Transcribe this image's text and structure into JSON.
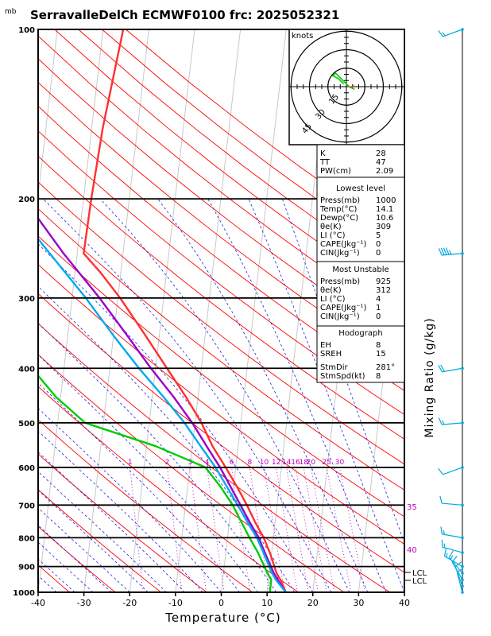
{
  "header": {
    "units_label": "mb",
    "title": "SerravalleDelCh ECMWF0100 frc: 2025052321"
  },
  "axes": {
    "xlabel": "Temperature (°C)",
    "right_label": "Mixing Ratio (g/kg)",
    "x_ticks": [
      "-40",
      "-30",
      "-20",
      "-10",
      "0",
      "10",
      "20",
      "30",
      "40"
    ],
    "p_ticks": [
      "100",
      "200",
      "300",
      "400",
      "500",
      "600",
      "700",
      "800",
      "900",
      "1000"
    ]
  },
  "hodograph": {
    "units": "knots",
    "ring_labels": [
      "15",
      "30",
      "45"
    ]
  },
  "mixing_ratio_labels": [
    "1",
    "2",
    "3",
    "4",
    "6",
    "8",
    "10",
    "12",
    "14",
    "16",
    "18",
    "20",
    "25",
    "30"
  ],
  "theta_labels": [
    "35",
    "40"
  ],
  "lcl_labels": [
    "LCL",
    "LCL"
  ],
  "indices": {
    "basic": [
      {
        "k": "K",
        "v": "28"
      },
      {
        "k": "TT",
        "v": "47"
      },
      {
        "k": "PW(cm)",
        "v": "2.09"
      }
    ],
    "lowest_title": "Lowest level",
    "lowest": [
      {
        "k": "Press(mb)",
        "v": "1000"
      },
      {
        "k": "Temp(°C)",
        "v": "14.1"
      },
      {
        "k": "Dewp(°C)",
        "v": "10.6"
      },
      {
        "k": "θe(K)",
        "v": "309"
      },
      {
        "k": "LI (°C)",
        "v": "5"
      },
      {
        "k": "CAPE(Jkg⁻¹)",
        "v": "0"
      },
      {
        "k": "CIN(Jkg⁻¹)",
        "v": "0"
      }
    ],
    "unstable_title": "Most Unstable",
    "unstable": [
      {
        "k": "Press(mb)",
        "v": "925"
      },
      {
        "k": "θe(K)",
        "v": "312"
      },
      {
        "k": "LI (°C)",
        "v": "4"
      },
      {
        "k": "CAPE(Jkg⁻¹)",
        "v": "1"
      },
      {
        "k": "CIN(Jkg⁻¹)",
        "v": "0"
      }
    ],
    "hodo_title": "Hodograph",
    "hodo": [
      {
        "k": "EH",
        "v": "8"
      },
      {
        "k": "SREH",
        "v": "15"
      },
      {
        "k": "StmDir",
        "v": "281°"
      },
      {
        "k": "StmSpd(kt)",
        "v": "8"
      }
    ]
  },
  "chart_data": {
    "type": "line",
    "chart_kind": "skew-T log-P diagram",
    "title": "SerravalleDelCh ECMWF0100 frc: 2025052321",
    "xlabel": "Temperature (°C)",
    "ylabel": "mb",
    "xlim": [
      -40,
      40
    ],
    "ylim": [
      1000,
      100
    ],
    "y_scale": "log",
    "colors": {
      "temperature": "#ff3030",
      "dewpoint": "#00cc00",
      "parcel": "#9900cc",
      "parcel_alt": "#00aaee",
      "isotherm": "#c8c8c8",
      "dry_adiabat": "#ff0000",
      "moist_adiabat": "#2222dd",
      "mixing_ratio": "#bb00bb",
      "wind": "#00aadd"
    },
    "series": [
      {
        "key": "temperature",
        "points": [
          [
            1000,
            14.1
          ],
          [
            950,
            12.6
          ],
          [
            925,
            11.6
          ],
          [
            850,
            9.6
          ],
          [
            800,
            7.9
          ],
          [
            750,
            5.6
          ],
          [
            700,
            3.4
          ],
          [
            650,
            0.8
          ],
          [
            600,
            -2.2
          ],
          [
            550,
            -5.6
          ],
          [
            500,
            -8.6
          ],
          [
            450,
            -12.6
          ],
          [
            400,
            -17.5
          ],
          [
            350,
            -23
          ],
          [
            300,
            -29.5
          ],
          [
            270,
            -34.5
          ],
          [
            250,
            -38.6
          ],
          [
            200,
            -38.3
          ],
          [
            150,
            -37.6
          ],
          [
            100,
            -35.6
          ]
        ]
      },
      {
        "key": "dewpoint",
        "points": [
          [
            1000,
            10.6
          ],
          [
            950,
            10.6
          ],
          [
            925,
            9.6
          ],
          [
            850,
            7.0
          ],
          [
            800,
            4.8
          ],
          [
            750,
            2.6
          ],
          [
            700,
            0.3
          ],
          [
            650,
            -2.8
          ],
          [
            600,
            -6.6
          ],
          [
            550,
            -18
          ],
          [
            500,
            -34
          ],
          [
            450,
            -41
          ],
          [
            400,
            -47
          ],
          [
            350,
            -52
          ],
          [
            300,
            -57
          ],
          [
            250,
            -62
          ],
          [
            200,
            -68
          ],
          [
            150,
            -75
          ],
          [
            100,
            -82
          ]
        ]
      },
      {
        "key": "parcel",
        "points": [
          [
            1000,
            14.1
          ],
          [
            950,
            12.0
          ],
          [
            925,
            11.0
          ],
          [
            850,
            8.5
          ],
          [
            800,
            6.8
          ],
          [
            750,
            4.4
          ],
          [
            700,
            2.0
          ],
          [
            650,
            -0.6
          ],
          [
            600,
            -3.4
          ],
          [
            550,
            -6.9
          ],
          [
            500,
            -10.6
          ],
          [
            450,
            -15.3
          ],
          [
            400,
            -21.0
          ],
          [
            350,
            -27.0
          ],
          [
            300,
            -34.0
          ],
          [
            250,
            -43.0
          ],
          [
            200,
            -53.0
          ],
          [
            150,
            -66.0
          ],
          [
            100,
            -80.0
          ]
        ]
      },
      {
        "key": "parcel_alt",
        "points": [
          [
            1000,
            14.1
          ],
          [
            950,
            11.6
          ],
          [
            925,
            10.6
          ],
          [
            850,
            8.2
          ],
          [
            800,
            6.4
          ],
          [
            750,
            3.9
          ],
          [
            700,
            1.4
          ],
          [
            650,
            -1.4
          ],
          [
            600,
            -4.4
          ],
          [
            550,
            -8.2
          ],
          [
            500,
            -12.3
          ],
          [
            450,
            -17.5
          ],
          [
            400,
            -23.6
          ],
          [
            350,
            -30.0
          ],
          [
            300,
            -37.0
          ],
          [
            250,
            -46.0
          ],
          [
            200,
            -57.0
          ],
          [
            150,
            -70.0
          ],
          [
            100,
            -84.0
          ]
        ]
      }
    ],
    "mixing_ratio_lines_gkg": [
      1,
      2,
      3,
      4,
      6,
      8,
      10,
      12,
      14,
      16,
      18,
      20,
      25,
      30
    ],
    "wind_barbs": [
      {
        "p": 100,
        "dir": 250,
        "spd_kt": 15
      },
      {
        "p": 250,
        "dir": 265,
        "spd_kt": 45
      },
      {
        "p": 400,
        "dir": 260,
        "spd_kt": 20
      },
      {
        "p": 500,
        "dir": 265,
        "spd_kt": 15
      },
      {
        "p": 600,
        "dir": 250,
        "spd_kt": 10
      },
      {
        "p": 700,
        "dir": 275,
        "spd_kt": 10
      },
      {
        "p": 800,
        "dir": 280,
        "spd_kt": 15
      },
      {
        "p": 850,
        "dir": 285,
        "spd_kt": 15
      },
      {
        "p": 900,
        "dir": 300,
        "spd_kt": 15
      },
      {
        "p": 925,
        "dir": 320,
        "spd_kt": 15
      },
      {
        "p": 950,
        "dir": 330,
        "spd_kt": 10
      },
      {
        "p": 975,
        "dir": 340,
        "spd_kt": 10
      },
      {
        "p": 1000,
        "dir": 345,
        "spd_kt": 10
      }
    ],
    "hodograph_rings_kt": [
      15,
      30,
      45
    ],
    "hodograph_points": [
      [
        -1,
        1
      ],
      [
        -3,
        3
      ],
      [
        -5,
        4
      ],
      [
        -4,
        5
      ],
      [
        -2,
        3
      ],
      [
        1,
        0
      ],
      [
        3,
        -1
      ]
    ]
  }
}
